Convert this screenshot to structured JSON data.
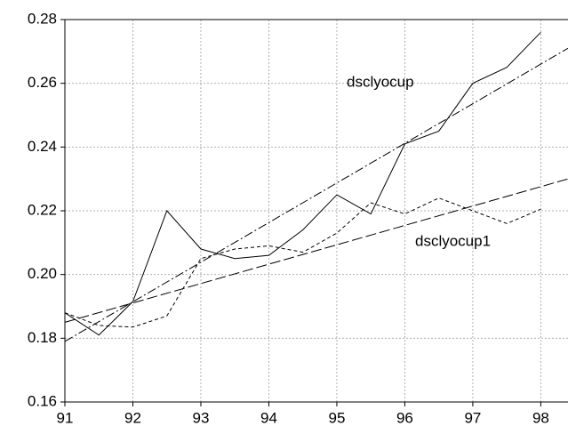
{
  "chart_data": {
    "type": "line",
    "x": [
      91,
      91.5,
      92,
      92.5,
      93,
      93.5,
      94,
      94.5,
      95,
      95.5,
      96,
      96.5,
      97,
      97.5,
      98
    ],
    "series": [
      {
        "name": "dsclyocup",
        "color": "#000000",
        "dash": "none",
        "values": [
          0.188,
          0.181,
          0.1915,
          0.22,
          0.208,
          0.205,
          0.206,
          0.214,
          0.225,
          0.219,
          0.241,
          0.245,
          0.26,
          0.265,
          0.276
        ]
      },
      {
        "name": "dsclyocup1",
        "color": "#000000",
        "dash": "4 3",
        "values": [
          0.188,
          0.184,
          0.1835,
          0.187,
          0.205,
          0.208,
          0.209,
          0.207,
          0.213,
          0.2225,
          0.219,
          0.224,
          0.22,
          0.216,
          0.2205
        ]
      }
    ],
    "trend_lines": [
      {
        "color": "#000000",
        "dash": "10 3 2 3",
        "x": [
          91,
          98.4
        ],
        "values": [
          0.179,
          0.271
        ]
      },
      {
        "color": "#000000",
        "dash": "12 4",
        "x": [
          91,
          98.4
        ],
        "values": [
          0.185,
          0.23
        ]
      }
    ],
    "xlim": [
      91,
      98.4
    ],
    "xticks": [
      91,
      92,
      93,
      94,
      95,
      96,
      97,
      98
    ],
    "ylim": [
      0.16,
      0.28
    ],
    "yticks": [
      0.16,
      0.18,
      {
        "value": 0.2,
        "label": "0.20"
      },
      0.22,
      0.24,
      0.26,
      0.28
    ],
    "grid": true
  }
}
